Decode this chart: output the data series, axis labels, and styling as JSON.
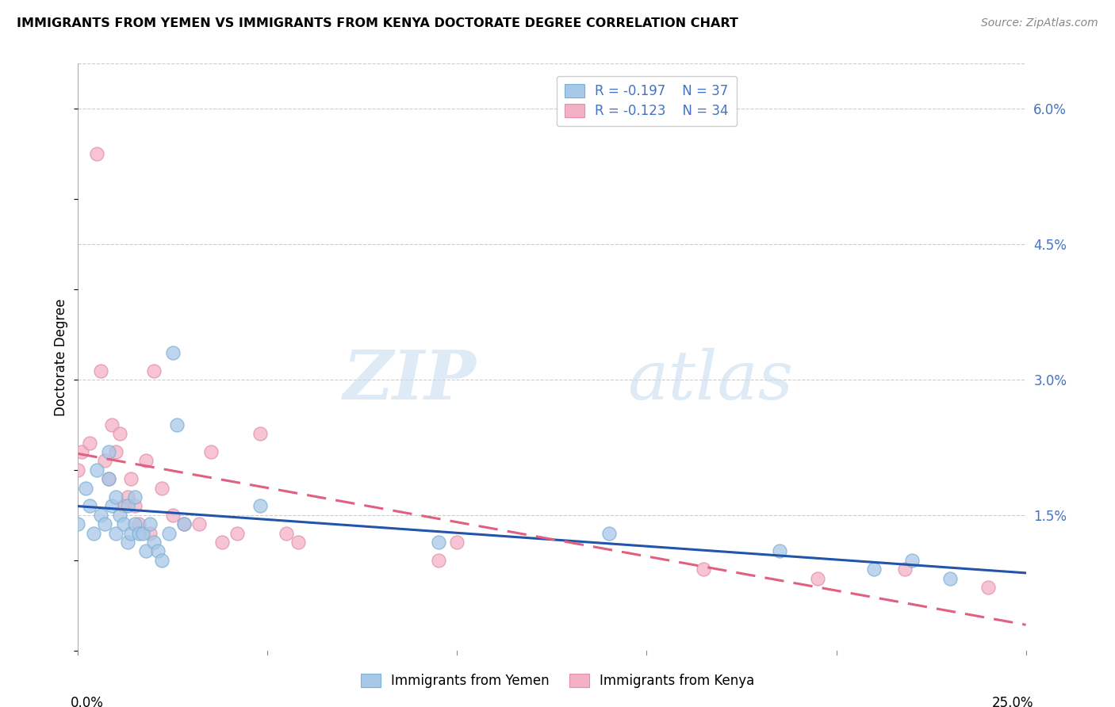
{
  "title": "IMMIGRANTS FROM YEMEN VS IMMIGRANTS FROM KENYA DOCTORATE DEGREE CORRELATION CHART",
  "source": "Source: ZipAtlas.com",
  "ylabel": "Doctorate Degree",
  "xlim": [
    0.0,
    0.25
  ],
  "ylim": [
    0.0,
    0.065
  ],
  "yticks": [
    0.015,
    0.03,
    0.045,
    0.06
  ],
  "ytick_labels": [
    "1.5%",
    "3.0%",
    "4.5%",
    "6.0%"
  ],
  "color_yemen": "#a8c8e8",
  "color_kenya": "#f4b0c4",
  "line_color_yemen": "#2255aa",
  "line_color_kenya": "#e06080",
  "watermark_zip": "ZIP",
  "watermark_atlas": "atlas",
  "background_color": "#ffffff",
  "grid_color": "#cccccc",
  "yemen_x": [
    0.0,
    0.002,
    0.003,
    0.004,
    0.005,
    0.006,
    0.007,
    0.008,
    0.008,
    0.009,
    0.01,
    0.01,
    0.011,
    0.012,
    0.013,
    0.013,
    0.014,
    0.015,
    0.015,
    0.016,
    0.017,
    0.018,
    0.019,
    0.02,
    0.021,
    0.022,
    0.024,
    0.025,
    0.026,
    0.028,
    0.048,
    0.095,
    0.14,
    0.185,
    0.21,
    0.22,
    0.23
  ],
  "yemen_y": [
    0.014,
    0.018,
    0.016,
    0.013,
    0.02,
    0.015,
    0.014,
    0.022,
    0.019,
    0.016,
    0.017,
    0.013,
    0.015,
    0.014,
    0.016,
    0.012,
    0.013,
    0.017,
    0.014,
    0.013,
    0.013,
    0.011,
    0.014,
    0.012,
    0.011,
    0.01,
    0.013,
    0.033,
    0.025,
    0.014,
    0.016,
    0.012,
    0.013,
    0.011,
    0.009,
    0.01,
    0.008
  ],
  "kenya_x": [
    0.0,
    0.001,
    0.003,
    0.005,
    0.006,
    0.007,
    0.008,
    0.009,
    0.01,
    0.011,
    0.012,
    0.013,
    0.014,
    0.015,
    0.016,
    0.018,
    0.019,
    0.02,
    0.022,
    0.025,
    0.028,
    0.032,
    0.035,
    0.038,
    0.042,
    0.048,
    0.055,
    0.058,
    0.095,
    0.1,
    0.165,
    0.195,
    0.218,
    0.24
  ],
  "kenya_y": [
    0.02,
    0.022,
    0.023,
    0.055,
    0.031,
    0.021,
    0.019,
    0.025,
    0.022,
    0.024,
    0.016,
    0.017,
    0.019,
    0.016,
    0.014,
    0.021,
    0.013,
    0.031,
    0.018,
    0.015,
    0.014,
    0.014,
    0.022,
    0.012,
    0.013,
    0.024,
    0.013,
    0.012,
    0.01,
    0.012,
    0.009,
    0.008,
    0.009,
    0.007
  ]
}
